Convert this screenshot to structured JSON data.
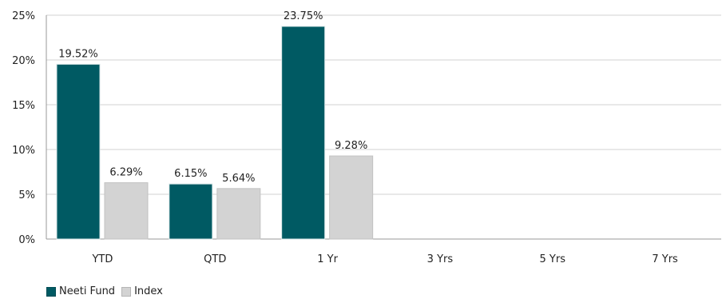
{
  "chart_data": {
    "type": "bar",
    "categories": [
      "YTD",
      "QTD",
      "1 Yr",
      "3 Yrs",
      "5 Yrs",
      "7 Yrs"
    ],
    "series": [
      {
        "name": "Neeti Fund",
        "values": [
          19.52,
          6.15,
          23.75,
          null,
          null,
          null
        ],
        "labels": [
          "19.52%",
          "6.15%",
          "23.75%",
          "",
          "",
          ""
        ],
        "color": "#005a63"
      },
      {
        "name": "Index",
        "values": [
          6.29,
          5.64,
          9.28,
          null,
          null,
          null
        ],
        "labels": [
          "6.29%",
          "5.64%",
          "9.28%",
          "",
          "",
          ""
        ],
        "color": "#d3d3d3"
      }
    ],
    "yticks": [
      "0%",
      "5%",
      "10%",
      "15%",
      "20%",
      "25%"
    ],
    "ylim": [
      0,
      25
    ],
    "grid": true,
    "legend_position": "bottom-left"
  }
}
